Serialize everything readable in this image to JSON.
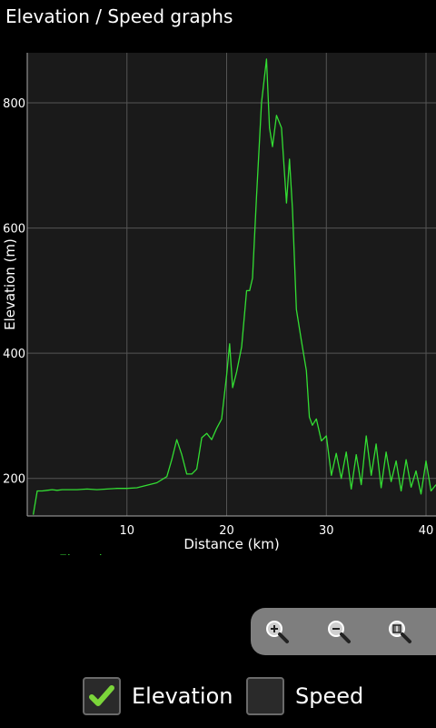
{
  "app": {
    "title": "Elevation / Speed graphs"
  },
  "chart_data": {
    "type": "line",
    "title": "",
    "xlabel": "Distance (km)",
    "ylabel": "Elevation (m)",
    "xlim": [
      0,
      41
    ],
    "ylim": [
      140,
      880
    ],
    "xticks": [
      "10",
      "20",
      "30",
      "40"
    ],
    "xtick_values": [
      10,
      20,
      30,
      40
    ],
    "yticks": [
      "200",
      "400",
      "600",
      "800"
    ],
    "ytick_values": [
      200,
      400,
      600,
      800
    ],
    "grid": true,
    "legend": "bottom-left",
    "series": [
      {
        "name": "Elevation",
        "color": "#33dd33",
        "x": [
          0.6,
          1.0,
          1.5,
          2,
          2.5,
          3,
          3.5,
          4,
          5,
          6,
          7,
          8,
          9,
          10,
          11,
          12,
          13,
          14,
          14.5,
          15,
          15.5,
          16,
          16.5,
          17,
          17.5,
          18,
          18.5,
          19,
          19.5,
          20,
          20.3,
          20.6,
          21,
          21.5,
          22,
          22.3,
          22.6,
          23,
          23.5,
          24,
          24.3,
          24.6,
          25,
          25.5,
          26,
          26.3,
          26.6,
          27,
          27.5,
          28,
          28.3,
          28.6,
          29,
          29.5,
          30,
          30.5,
          31,
          31.5,
          32,
          32.5,
          33,
          33.5,
          34,
          34.5,
          35,
          35.5,
          36,
          36.5,
          37,
          37.5,
          38,
          38.5,
          39,
          39.5,
          40,
          40.5,
          41
        ],
        "values": [
          142,
          180,
          180,
          181,
          182,
          181,
          182,
          182,
          182,
          183,
          182,
          183,
          184,
          184,
          185,
          189,
          193,
          203,
          230,
          262,
          238,
          207,
          207,
          215,
          265,
          272,
          262,
          280,
          295,
          365,
          415,
          345,
          370,
          410,
          500,
          500,
          520,
          650,
          800,
          870,
          760,
          730,
          780,
          760,
          640,
          710,
          630,
          470,
          420,
          372,
          298,
          285,
          295,
          260,
          268,
          205,
          240,
          200,
          242,
          183,
          238,
          190,
          268,
          205,
          255,
          185,
          242,
          195,
          228,
          180,
          230,
          186,
          212,
          175,
          228,
          180,
          190
        ]
      }
    ]
  },
  "legend": {
    "elevation_label": "Elevation"
  },
  "zoom": {
    "zoom_in_icon": "zoom-in-icon",
    "zoom_out_icon": "zoom-out-icon",
    "zoom_fit_icon": "zoom-fit-icon"
  },
  "toggles": {
    "elevation_label": "Elevation",
    "elevation_checked": true,
    "speed_label": "Speed",
    "speed_checked": false
  },
  "colors": {
    "line": "#33dd33",
    "grid": "#555555",
    "plot_bg": "#1a1a1a",
    "check": "#7bd53a"
  }
}
